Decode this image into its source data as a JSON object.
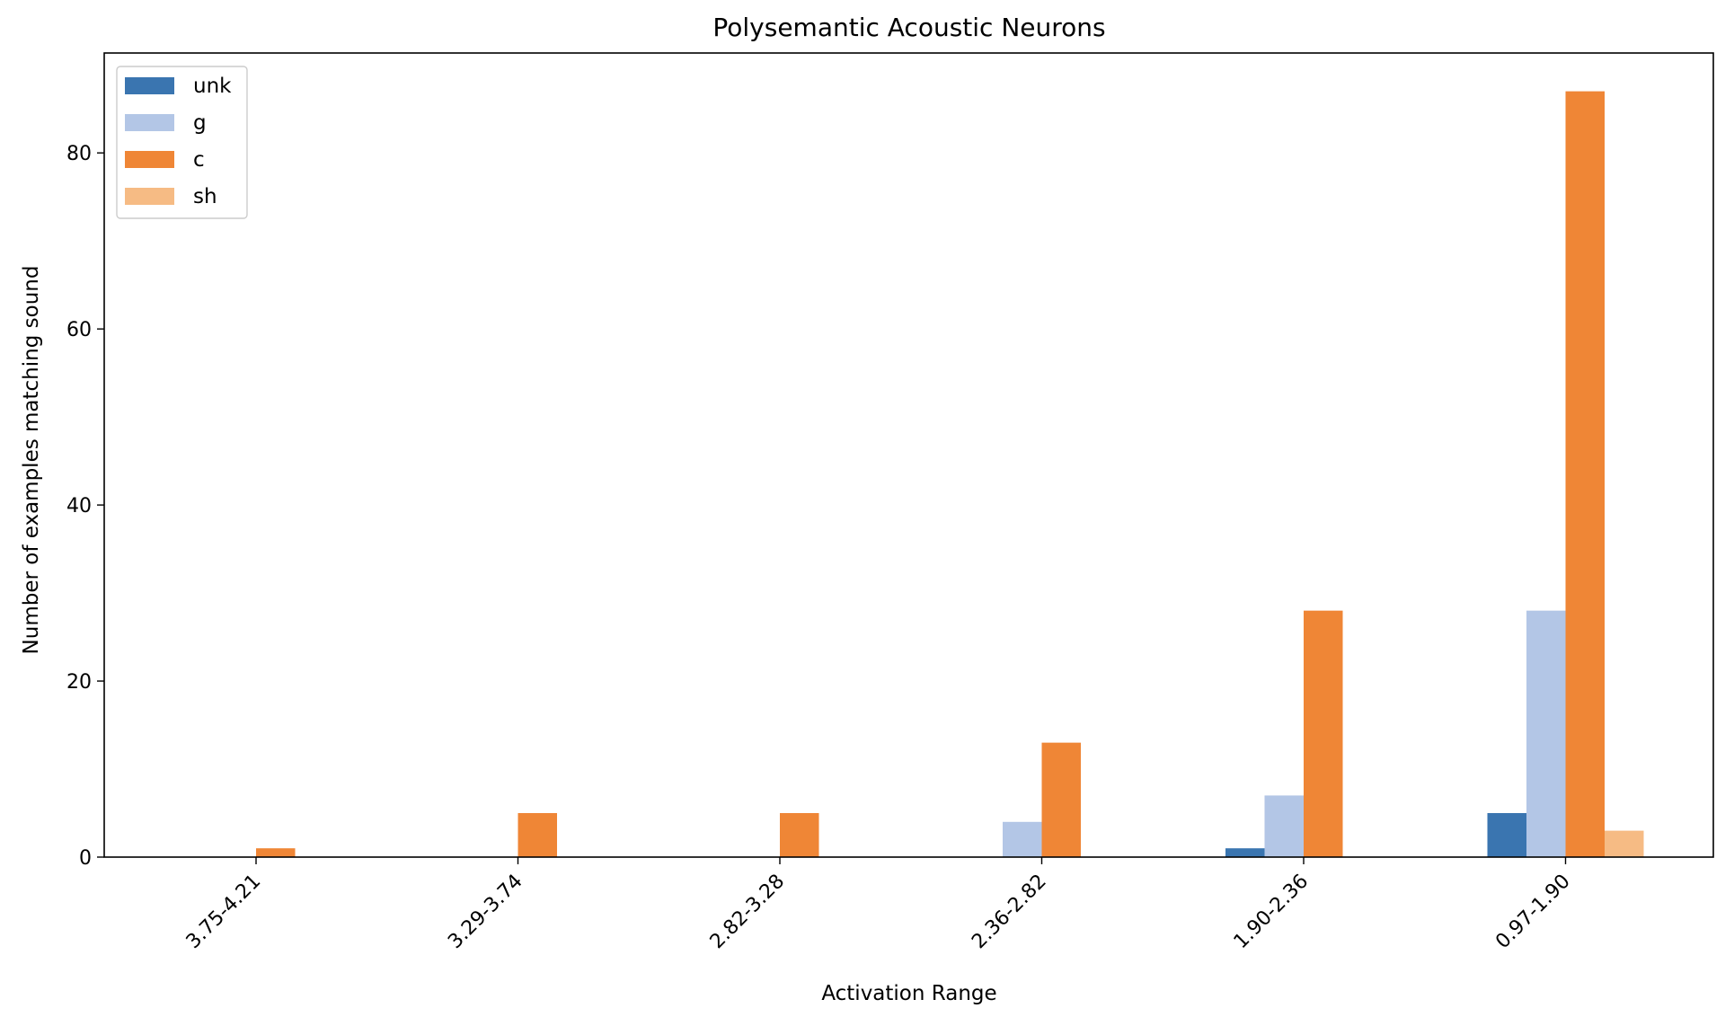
{
  "chart_data": {
    "type": "bar",
    "title": "Polysemantic Acoustic Neurons",
    "xlabel": "Activation Range",
    "ylabel": "Number of examples matching sound",
    "categories": [
      "3.75-4.21",
      "3.29-3.74",
      "2.82-3.28",
      "2.36-2.82",
      "1.90-2.36",
      "0.97-1.90"
    ],
    "ylim": [
      0,
      91.35
    ],
    "yticks": [
      0,
      20,
      40,
      60,
      80
    ],
    "grid": false,
    "legend_position": "top-left",
    "series": [
      {
        "name": "unk",
        "color": "#3a75b0",
        "values": [
          0,
          0,
          0,
          0,
          1,
          5
        ]
      },
      {
        "name": "g",
        "color": "#b3c6e6",
        "values": [
          0,
          0,
          0,
          4,
          7,
          28
        ]
      },
      {
        "name": "c",
        "color": "#ef8636",
        "values": [
          1,
          5,
          5,
          13,
          28,
          87
        ]
      },
      {
        "name": "sh",
        "color": "#f6bb84",
        "values": [
          0,
          0,
          0,
          0,
          0,
          3
        ]
      }
    ]
  }
}
